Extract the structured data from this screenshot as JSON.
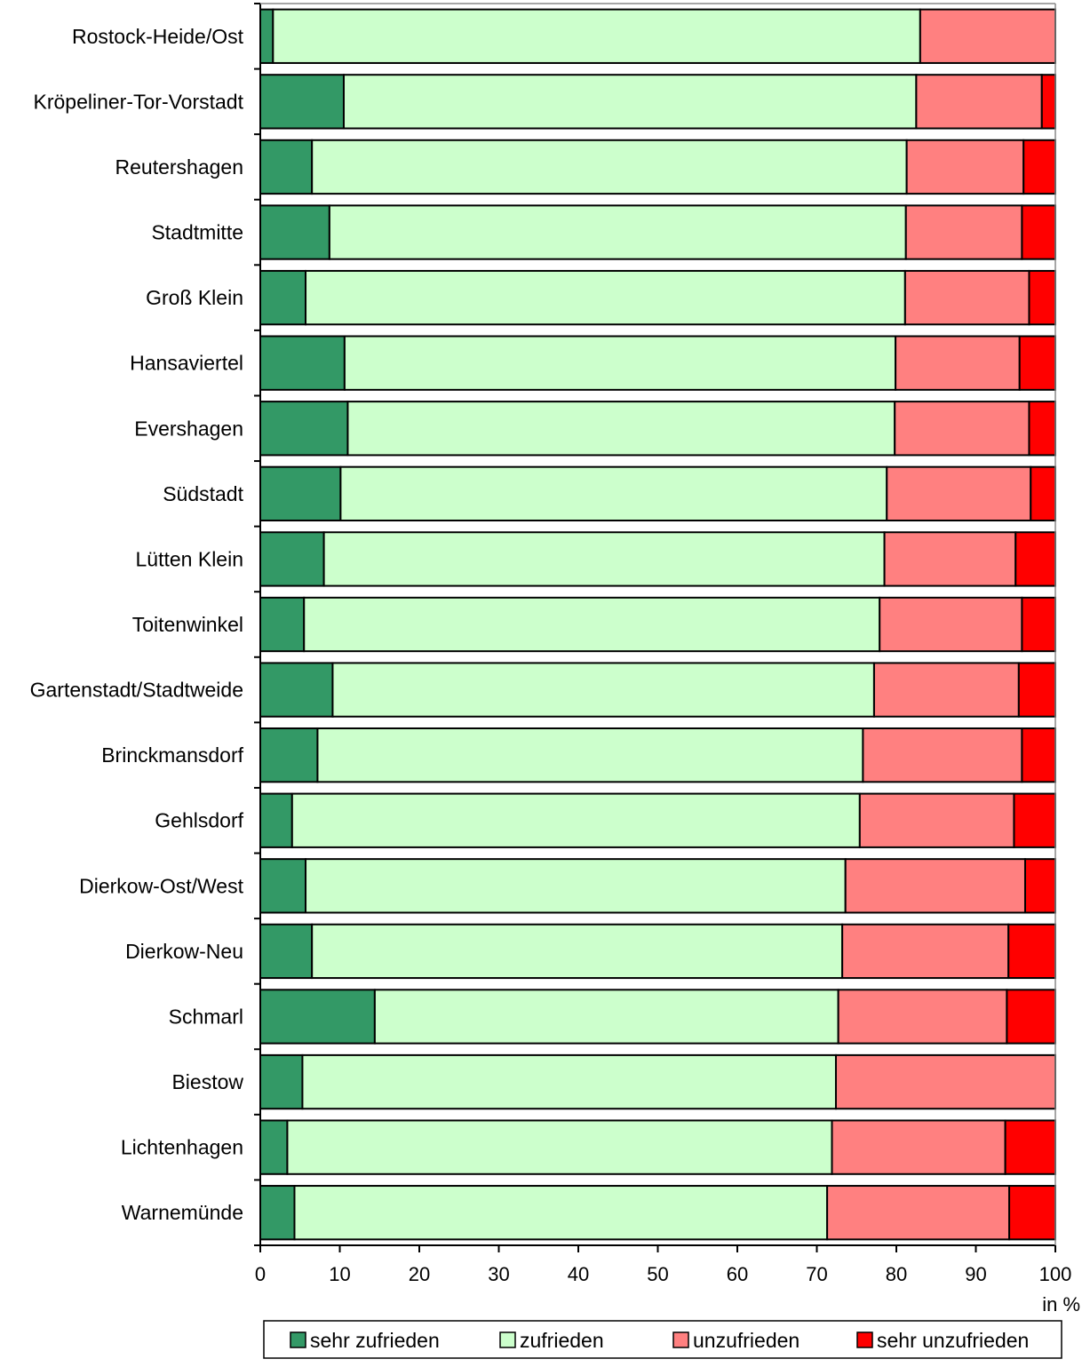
{
  "chart_data": {
    "type": "bar",
    "orientation": "horizontal",
    "stacked": true,
    "categories": [
      "Rostock-Heide/Ost",
      "Kröpeliner-Tor-Vorstadt",
      "Reutershagen",
      "Stadtmitte",
      "Groß Klein",
      "Hansaviertel",
      "Evershagen",
      "Südstadt",
      "Lütten Klein",
      "Toitenwinkel",
      "Gartenstadt/Stadtweide",
      "Brinckmansdorf",
      "Gehlsdorf",
      "Dierkow-Ost/West",
      "Dierkow-Neu",
      "Schmarl",
      "Biestow",
      "Lichtenhagen",
      "Warnemünde"
    ],
    "series": [
      {
        "name": "sehr zufrieden",
        "color": "#339966",
        "values": [
          1.6,
          10.5,
          6.5,
          8.7,
          5.7,
          10.6,
          11.0,
          10.1,
          8.0,
          5.5,
          9.1,
          7.2,
          4.0,
          5.7,
          6.5,
          14.4,
          5.3,
          3.4,
          4.3
        ]
      },
      {
        "name": "zufrieden",
        "color": "#CCFFCC",
        "values": [
          81.4,
          72.0,
          74.8,
          72.5,
          75.4,
          69.3,
          68.8,
          68.7,
          70.5,
          72.4,
          68.1,
          68.6,
          71.4,
          67.9,
          66.7,
          58.3,
          67.1,
          68.5,
          67.0
        ]
      },
      {
        "name": "unzufrieden",
        "color": "#FF8080",
        "values": [
          17.0,
          15.8,
          14.7,
          14.6,
          15.6,
          15.6,
          16.9,
          18.1,
          16.5,
          17.9,
          18.2,
          20.0,
          19.4,
          22.6,
          20.9,
          21.2,
          27.6,
          21.8,
          22.9
        ]
      },
      {
        "name": "sehr unzufrieden",
        "color": "#FF0000",
        "values": [
          0.0,
          1.7,
          4.0,
          4.2,
          3.3,
          4.5,
          3.3,
          3.1,
          5.0,
          4.2,
          4.6,
          4.2,
          5.2,
          3.8,
          5.9,
          6.1,
          0.0,
          6.3,
          5.8
        ]
      }
    ],
    "xlim": [
      0,
      100
    ],
    "xticks": [
      0,
      10,
      20,
      30,
      40,
      50,
      60,
      70,
      80,
      90,
      100
    ],
    "xlabel": "in %",
    "grid": false,
    "legend_position": "bottom"
  }
}
